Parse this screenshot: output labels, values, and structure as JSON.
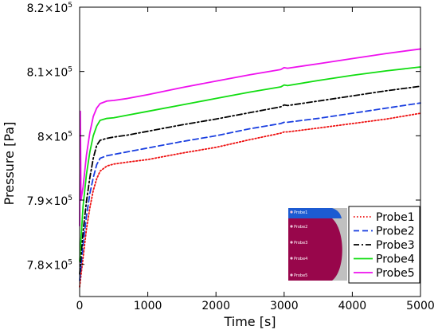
{
  "chart_data": {
    "type": "line",
    "title": "",
    "xlabel": "Time [s]",
    "ylabel": "Pressure [Pa]",
    "xlim": [
      0,
      5000
    ],
    "ylim": [
      775000,
      820000
    ],
    "grid": false,
    "legend_position": "bottom-right",
    "x_ticks": [
      {
        "value": 0,
        "label": "0"
      },
      {
        "value": 1000,
        "label": "1000"
      },
      {
        "value": 2000,
        "label": "2000"
      },
      {
        "value": 3000,
        "label": "3000"
      },
      {
        "value": 4000,
        "label": "4000"
      },
      {
        "value": 5000,
        "label": "5000"
      }
    ],
    "y_ticks": [
      {
        "value": 780000,
        "mantissa": "7.8×10",
        "exp": "5"
      },
      {
        "value": 790000,
        "mantissa": "7.9×10",
        "exp": "5"
      },
      {
        "value": 800000,
        "mantissa": "8×10",
        "exp": "5"
      },
      {
        "value": 810000,
        "mantissa": "8.1×10",
        "exp": "5"
      },
      {
        "value": 820000,
        "mantissa": "8.2×10",
        "exp": "5"
      }
    ],
    "series": [
      {
        "name": "Probe1",
        "color": "#ee1111",
        "dash": "dotted",
        "x": [
          0,
          50,
          100,
          150,
          200,
          250,
          300,
          400,
          500,
          700,
          1000,
          1500,
          2000,
          2500,
          2950,
          3000,
          3050,
          3500,
          4000,
          4500,
          5000
        ],
        "y": [
          776500,
          781000,
          785500,
          788800,
          791500,
          793300,
          794500,
          795300,
          795600,
          795900,
          796300,
          797300,
          798200,
          799400,
          800400,
          800600,
          800600,
          801200,
          801900,
          802600,
          803500
        ]
      },
      {
        "name": "Probe2",
        "color": "#1a3fe0",
        "dash": "dashed",
        "x": [
          0,
          50,
          100,
          150,
          200,
          250,
          300,
          400,
          500,
          700,
          1000,
          1500,
          2000,
          2500,
          2950,
          3000,
          3050,
          3500,
          4000,
          4500,
          5000
        ],
        "y": [
          777500,
          783000,
          787500,
          791000,
          793500,
          795500,
          796500,
          796900,
          797100,
          797500,
          798100,
          799100,
          800000,
          801100,
          801900,
          802100,
          802100,
          802700,
          803500,
          804300,
          805100
        ]
      },
      {
        "name": "Probe3",
        "color": "#000000",
        "dash": "dashdot",
        "x": [
          0,
          50,
          100,
          150,
          200,
          250,
          300,
          400,
          500,
          700,
          1000,
          1500,
          2000,
          2500,
          2950,
          3000,
          3050,
          3500,
          4000,
          4500,
          5000
        ],
        "y": [
          778500,
          785000,
          789800,
          793500,
          796500,
          798500,
          799300,
          799600,
          799800,
          800100,
          800700,
          801700,
          802600,
          803600,
          804500,
          804800,
          804700,
          805400,
          806200,
          807000,
          807700
        ]
      },
      {
        "name": "Probe4",
        "color": "#11dd11",
        "dash": "solid",
        "x": [
          0,
          50,
          100,
          150,
          200,
          250,
          300,
          400,
          500,
          700,
          1000,
          1500,
          2000,
          2500,
          2950,
          3000,
          3050,
          3500,
          4000,
          4500,
          5000
        ],
        "y": [
          780500,
          789000,
          794000,
          797500,
          800000,
          801500,
          802400,
          802700,
          802800,
          803200,
          803800,
          804800,
          805800,
          806800,
          807600,
          807900,
          807800,
          808600,
          809400,
          810100,
          810700
        ]
      },
      {
        "name": "Probe5",
        "color": "#ee11ee",
        "dash": "solid",
        "x": [
          0,
          10,
          20,
          50,
          100,
          150,
          200,
          250,
          300,
          400,
          500,
          700,
          1000,
          1500,
          2000,
          2500,
          2950,
          3000,
          3050,
          3500,
          4000,
          4500,
          5000
        ],
        "y": [
          786000,
          803800,
          790000,
          792000,
          797000,
          800500,
          803000,
          804300,
          805000,
          805400,
          805500,
          805800,
          806400,
          807500,
          808500,
          809500,
          810300,
          810600,
          810500,
          811200,
          812000,
          812800,
          813500
        ]
      }
    ],
    "inset": {
      "labels": [
        "Probe1",
        "Probe2",
        "Probe3",
        "Probe4",
        "Probe5"
      ],
      "colors": {
        "background": "#c0c0c0",
        "cap": "#1c5bd2",
        "body": "#98064b",
        "dot": "#f2c5dc",
        "label": "#ffffff"
      }
    }
  }
}
